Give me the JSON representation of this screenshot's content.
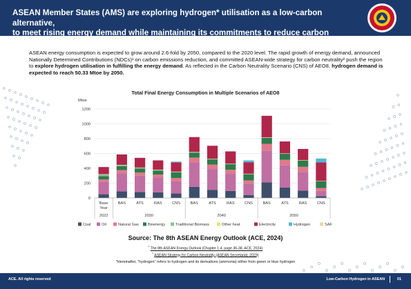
{
  "header": {
    "title_line1": "ASEAN Member States (AMS) are exploring hydrogen* utilisation as a low-carbon alternative,",
    "title_line2": "to meet rising energy demand while maintaining its commitments to reduce carbon emissions."
  },
  "intro": {
    "p1": "ASEAN energy consumption is expected to grow around 2.6-fold by 2050, compared to the 2020 level. The rapid growth of energy demand, announced Nationally Determined Contributions (NDCs)¹ on carbon emissions reduction, and committed ASEAN-wide strategy for carbon neutrality² push the region to ",
    "p1_bold": "explore hydrogen utilisation in fulfilling the energy demand",
    "p2": ". As reflected in the Carbon Neutrality Scenario (CNS) of AEO8, ",
    "p2_bold": "hydrogen demand is expected to reach 50.33 Mtoe by 2050."
  },
  "chart_data": {
    "type": "bar",
    "stacked": true,
    "title": "Total Final Energy Consumption in Multiple Scenarios of AEO8",
    "ylabel": "Mtoe",
    "ylim": [
      0,
      1200
    ],
    "yticks": [
      0,
      200,
      400,
      600,
      800,
      1000,
      1200
    ],
    "grid": true,
    "legend_position": "bottom",
    "categories": [
      "Base Year",
      "BAS",
      "ATS",
      "RAS",
      "CNS",
      "BAS",
      "ATS",
      "RAS",
      "CNS",
      "BAS",
      "ATS",
      "RAS",
      "CNS"
    ],
    "groups": [
      {
        "label": "2022",
        "start": 0,
        "end": 0
      },
      {
        "label": "2030",
        "start": 1,
        "end": 4
      },
      {
        "label": "2040",
        "start": 5,
        "end": 8
      },
      {
        "label": "2050",
        "start": 9,
        "end": 12
      }
    ],
    "series": [
      {
        "name": "Coal",
        "color": "#3d4e6b",
        "values": [
          50,
          90,
          80,
          75,
          60,
          150,
          110,
          95,
          40,
          210,
          140,
          100,
          25
        ]
      },
      {
        "name": "Oil",
        "color": "#c06fa3",
        "values": [
          170,
          240,
          220,
          200,
          170,
          330,
          280,
          230,
          150,
          430,
          300,
          250,
          70
        ]
      },
      {
        "name": "Natural Gas",
        "color": "#e07a8a",
        "values": [
          30,
          45,
          42,
          40,
          40,
          65,
          60,
          55,
          45,
          90,
          75,
          70,
          40
        ]
      },
      {
        "name": "Bioenergy",
        "color": "#2f7a4c",
        "values": [
          45,
          55,
          55,
          55,
          75,
          65,
          70,
          75,
          85,
          80,
          80,
          85,
          90
        ]
      },
      {
        "name": "Traditional Biomass",
        "color": "#8fbf8f",
        "values": [
          25,
          15,
          12,
          10,
          8,
          8,
          6,
          5,
          4,
          5,
          4,
          3,
          2
        ]
      },
      {
        "name": "Other heat",
        "color": "#e8e070",
        "values": [
          2,
          2,
          2,
          2,
          2,
          3,
          3,
          3,
          3,
          3,
          3,
          3,
          3
        ]
      },
      {
        "name": "Electricity",
        "color": "#b0264a",
        "values": [
          95,
          140,
          130,
          125,
          125,
          200,
          175,
          165,
          155,
          290,
          160,
          150,
          250
        ]
      },
      {
        "name": "Hydrogen",
        "color": "#4fb8d8",
        "values": [
          0,
          0,
          0,
          0,
          10,
          0,
          0,
          0,
          25,
          0,
          0,
          0,
          50
        ]
      },
      {
        "name": "SAF",
        "color": "#e9d89a",
        "values": [
          0,
          0,
          0,
          0,
          0,
          0,
          0,
          0,
          0,
          0,
          0,
          0,
          5
        ]
      }
    ]
  },
  "source": "Source: The 8th ASEAN Energy Outlook (ACE, 2024)",
  "refs": {
    "r1_sup": "¹",
    "r1": "The 8th ASEAN Energy Outlook (Chapter 1.4, page 36-38, ACE, 2024)",
    "r2_sup": "²",
    "r2": "ASEAN Strategy for Carbon Neutrality (ASEAN Secretariat, 2023)"
  },
  "note": "*Hereinafter, \"hydrogen\" refers to hydrogen and its derivatives (ammonia) either from green or blue hydrogen",
  "footer": {
    "left": "ACE. All rights reserved",
    "right": "Low-Carbon Hydrogen in ASEAN",
    "page": "01"
  },
  "colors": {
    "navy": "#1b3a6b",
    "grid": "#d9d9d9",
    "dot": "#9aa8bf"
  }
}
